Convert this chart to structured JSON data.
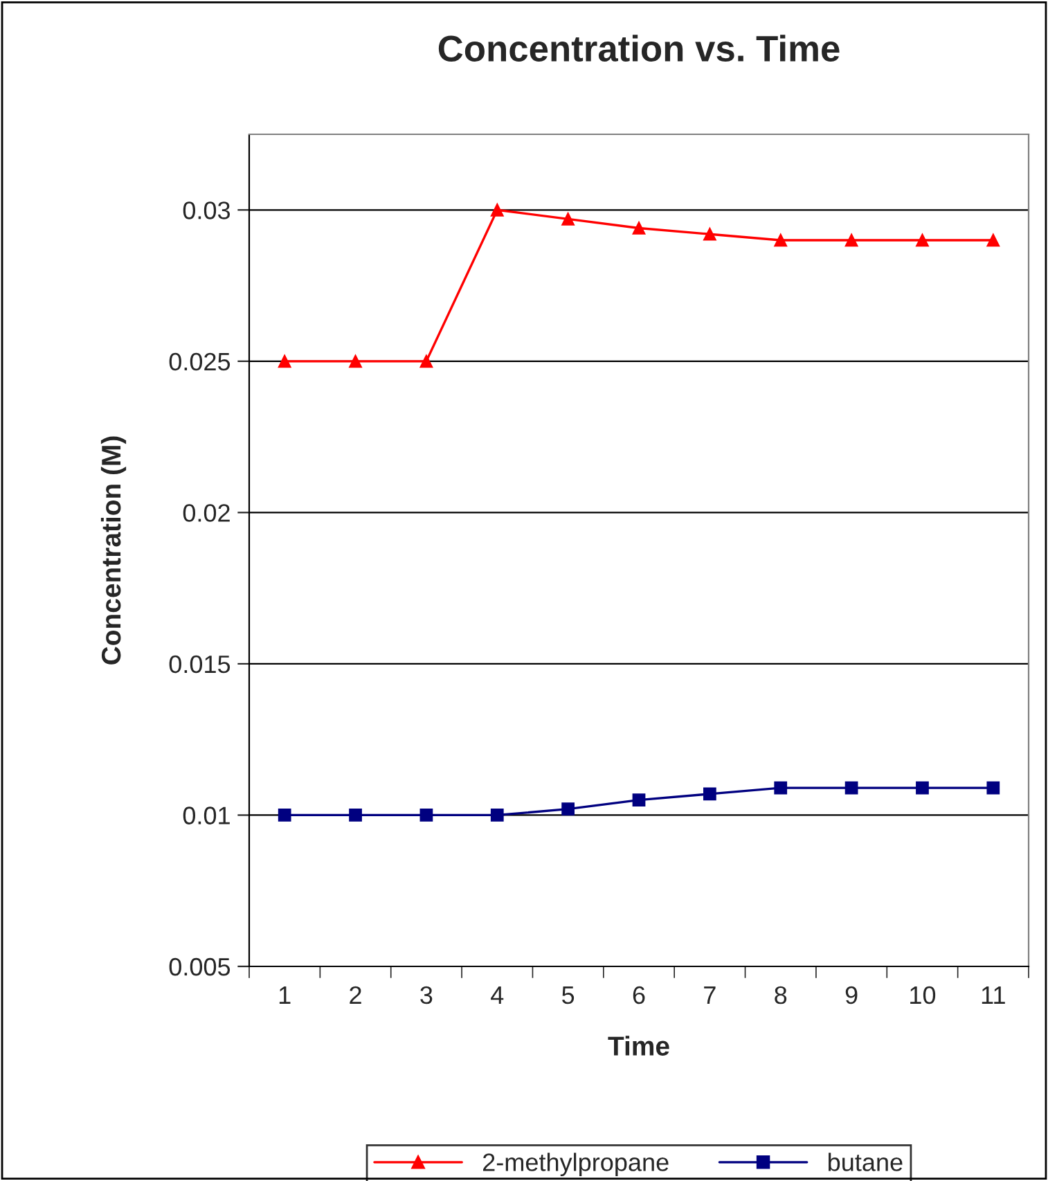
{
  "chart_data": {
    "type": "line",
    "title": "Concentration vs. Time",
    "xlabel": "Time",
    "ylabel": "Concentration (M)",
    "categories": [
      "1",
      "2",
      "3",
      "4",
      "5",
      "6",
      "7",
      "8",
      "9",
      "10",
      "11"
    ],
    "series": [
      {
        "name": "2-methylpropane",
        "color": "#ff0000",
        "marker": "triangle",
        "values": [
          0.025,
          0.025,
          0.025,
          0.03,
          0.0297,
          0.0294,
          0.0292,
          0.029,
          0.029,
          0.029,
          0.029
        ]
      },
      {
        "name": "butane",
        "color": "#000080",
        "marker": "square",
        "values": [
          0.01,
          0.01,
          0.01,
          0.01,
          0.0102,
          0.0105,
          0.0107,
          0.0109,
          0.0109,
          0.0109,
          0.0109
        ]
      }
    ],
    "ylim": [
      0.005,
      0.0325
    ],
    "yticks": [
      0.005,
      0.01,
      0.015,
      0.02,
      0.025,
      0.03
    ],
    "grid": "y",
    "legend": "bottom",
    "line_style": "solid"
  }
}
